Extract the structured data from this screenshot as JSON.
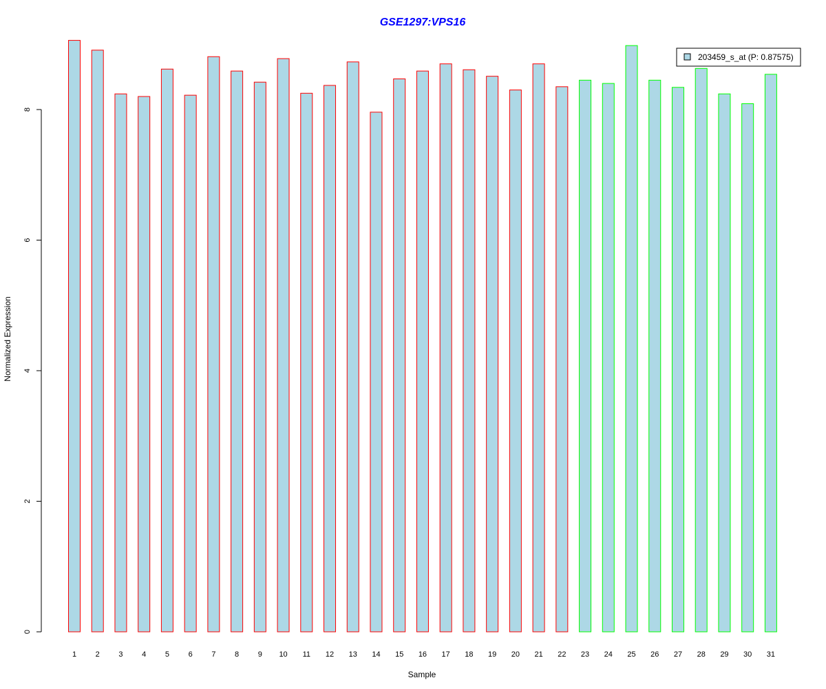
{
  "chart_data": {
    "type": "bar",
    "title": "GSE1297:VPS16",
    "xlabel": "Sample",
    "ylabel": "Normalized Expression",
    "ylim": [
      0,
      9.1
    ],
    "yticks": [
      0,
      2,
      4,
      6,
      8
    ],
    "categories": [
      "1",
      "2",
      "3",
      "4",
      "5",
      "6",
      "7",
      "8",
      "9",
      "10",
      "11",
      "12",
      "13",
      "14",
      "15",
      "16",
      "17",
      "18",
      "19",
      "20",
      "21",
      "22",
      "23",
      "24",
      "25",
      "26",
      "27",
      "28",
      "29",
      "30",
      "31"
    ],
    "values": [
      9.06,
      8.91,
      8.24,
      8.2,
      8.62,
      8.22,
      8.81,
      8.59,
      8.42,
      8.78,
      8.25,
      8.37,
      8.73,
      7.96,
      8.47,
      8.59,
      8.7,
      8.61,
      8.51,
      8.3,
      8.7,
      8.35,
      8.45,
      8.4,
      8.98,
      8.45,
      8.34,
      8.63,
      8.24,
      8.09,
      8.54
    ],
    "groups": [
      "red",
      "red",
      "red",
      "red",
      "red",
      "red",
      "red",
      "red",
      "red",
      "red",
      "red",
      "red",
      "red",
      "red",
      "red",
      "red",
      "red",
      "red",
      "red",
      "red",
      "red",
      "red",
      "green",
      "green",
      "green",
      "green",
      "green",
      "green",
      "green",
      "green",
      "green"
    ],
    "colors": {
      "fill": "#add8e6",
      "red": "#ff0000",
      "green": "#00ff00",
      "title": "#0000ff"
    },
    "legend": {
      "label": "203459_s_at (P: 0.87575)",
      "position": "top-right"
    },
    "grid": false
  }
}
